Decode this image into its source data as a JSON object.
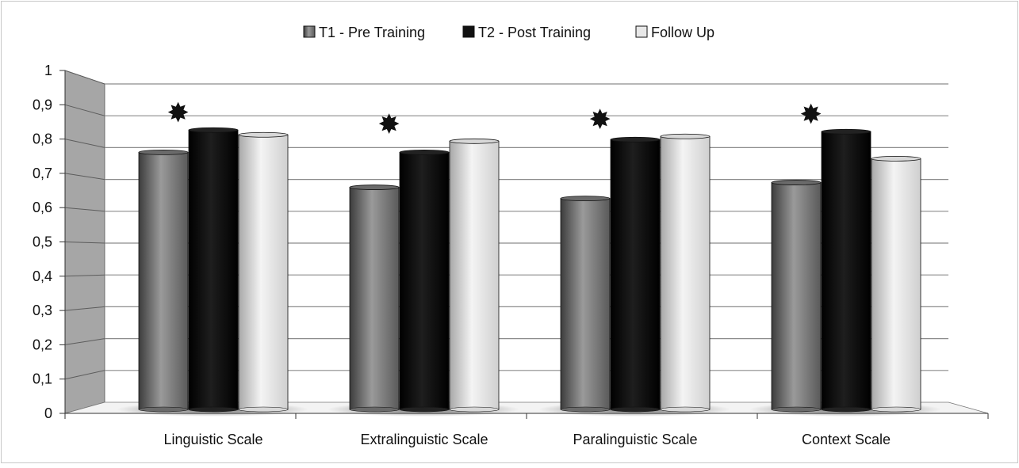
{
  "chart_data": {
    "type": "bar",
    "title": "",
    "xlabel": "",
    "ylabel": "",
    "ylim": [
      0,
      1
    ],
    "yticks": [
      0,
      0.1,
      0.2,
      0.3,
      0.4,
      0.5,
      0.6,
      0.7,
      0.8,
      0.9,
      1
    ],
    "ytick_labels": [
      "0",
      "0,1",
      "0,2",
      "0,3",
      "0,4",
      "0,5",
      "0,6",
      "0,7",
      "0,8",
      "0,9",
      "1"
    ],
    "grid": true,
    "legend_position": "top-center",
    "categories": [
      "Linguistic Scale",
      "Extralinguistic Scale",
      "Paralinguistic Scale",
      "Context Scale"
    ],
    "series": [
      {
        "name": "T1 - Pre Training",
        "values": [
          0.82,
          0.71,
          0.675,
          0.725
        ],
        "color": "#8a8a8a"
      },
      {
        "name": "T2 - Post Training",
        "values": [
          0.89,
          0.82,
          0.86,
          0.885
        ],
        "color": "#111111"
      },
      {
        "name": "Follow Up",
        "values": [
          0.875,
          0.855,
          0.87,
          0.8
        ],
        "color": "#e6e6e6"
      }
    ],
    "significance_markers": [
      "✸",
      "✸",
      "✸",
      "✸"
    ]
  }
}
